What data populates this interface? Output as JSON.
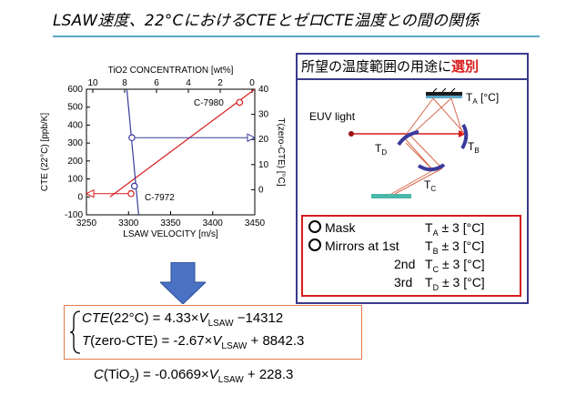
{
  "title": {
    "main": "LSAW速度、22°CにおけるCTEとゼロCTE温度との間の関係",
    "highlight": ""
  },
  "panel": {
    "heading_prefix": "所望の温度範囲の用途に",
    "heading_highlight": "選別",
    "euv_label": "EUV light",
    "ta": "T",
    "ta_sub": "A",
    "ta_unit": " [°C]",
    "tb": "T",
    "tb_sub": "B",
    "tc": "T",
    "tc_sub": "C",
    "td": "T",
    "td_sub": "D"
  },
  "temps": [
    {
      "label": "Mask",
      "t": "T",
      "sub": "A",
      "val": " ± 3 [°C]",
      "bullet": true
    },
    {
      "label": "Mirrors at 1st",
      "t": "T",
      "sub": "B",
      "val": " ± 3 [°C]",
      "bullet": true
    },
    {
      "label": "2nd",
      "t": "T",
      "sub": "C",
      "val": " ± 3 [°C]",
      "bullet": false
    },
    {
      "label": "3rd",
      "t": "T",
      "sub": "D",
      "val": " ± 3 [°C]",
      "bullet": false
    }
  ],
  "equations": {
    "eq1_lhs": "CTE",
    "eq1_arg": "(22°C) = 4.33×",
    "eq1_v": "V",
    "eq1_sub": "LSAW",
    "eq1_rest": " −14312",
    "eq2_lhs": "T",
    "eq2_arg": "(zero-CTE) = -2.67×",
    "eq2_v": "V",
    "eq2_sub": "LSAW",
    "eq2_rest": " + 8842.3",
    "eq3_lhs": "C",
    "eq3_arg": "(TiO",
    "eq3_sub2": "2",
    "eq3_mid": ") = -0.0669×",
    "eq3_v": "V",
    "eq3_sub": "LSAW",
    "eq3_rest": " + 228.3"
  },
  "chart_data": {
    "type": "line",
    "xlabel": "LSAW VELOCITY [m/s]",
    "ylabel": "CTE (22°C) [ppb/K]",
    "y2label": "T(zero-CTE) [°C]",
    "toplabel": "TiO2 CONCENTRATION [wt%]",
    "xlim": [
      3250,
      3450
    ],
    "ylim": [
      -100,
      600
    ],
    "y2lim": [
      -10,
      40
    ],
    "xticks": [
      "3250",
      "3300",
      "3350",
      "3400",
      "3450"
    ],
    "yticks": [
      "600",
      "500",
      "400",
      "300",
      "200",
      "100",
      "0",
      "-100"
    ],
    "y2ticks": [
      "40",
      "30",
      "20",
      "10",
      "0"
    ],
    "topticks": [
      "10",
      "8",
      "6",
      "4",
      "2",
      "0"
    ],
    "series": [
      {
        "name": "",
        "color": "#d81c1c",
        "x": [
          3278,
          3450
        ],
        "y": [
          0,
          600
        ]
      },
      {
        "name": "",
        "color": "#3a3a9c",
        "x": [
          3298,
          3312
        ],
        "y": [
          600,
          -100
        ]
      }
    ],
    "markers": [
      {
        "x": 3432,
        "y": 527,
        "color": "#d81c1c"
      },
      {
        "x": 3303,
        "y": 18,
        "color": "#d81c1c"
      },
      {
        "x": 3304,
        "y": 330,
        "color": "#3a3a9c"
      },
      {
        "x": 3307,
        "y": 60,
        "color": "#3a3a9c"
      }
    ],
    "annotations": [
      "C-7980",
      "C-7972"
    ]
  }
}
